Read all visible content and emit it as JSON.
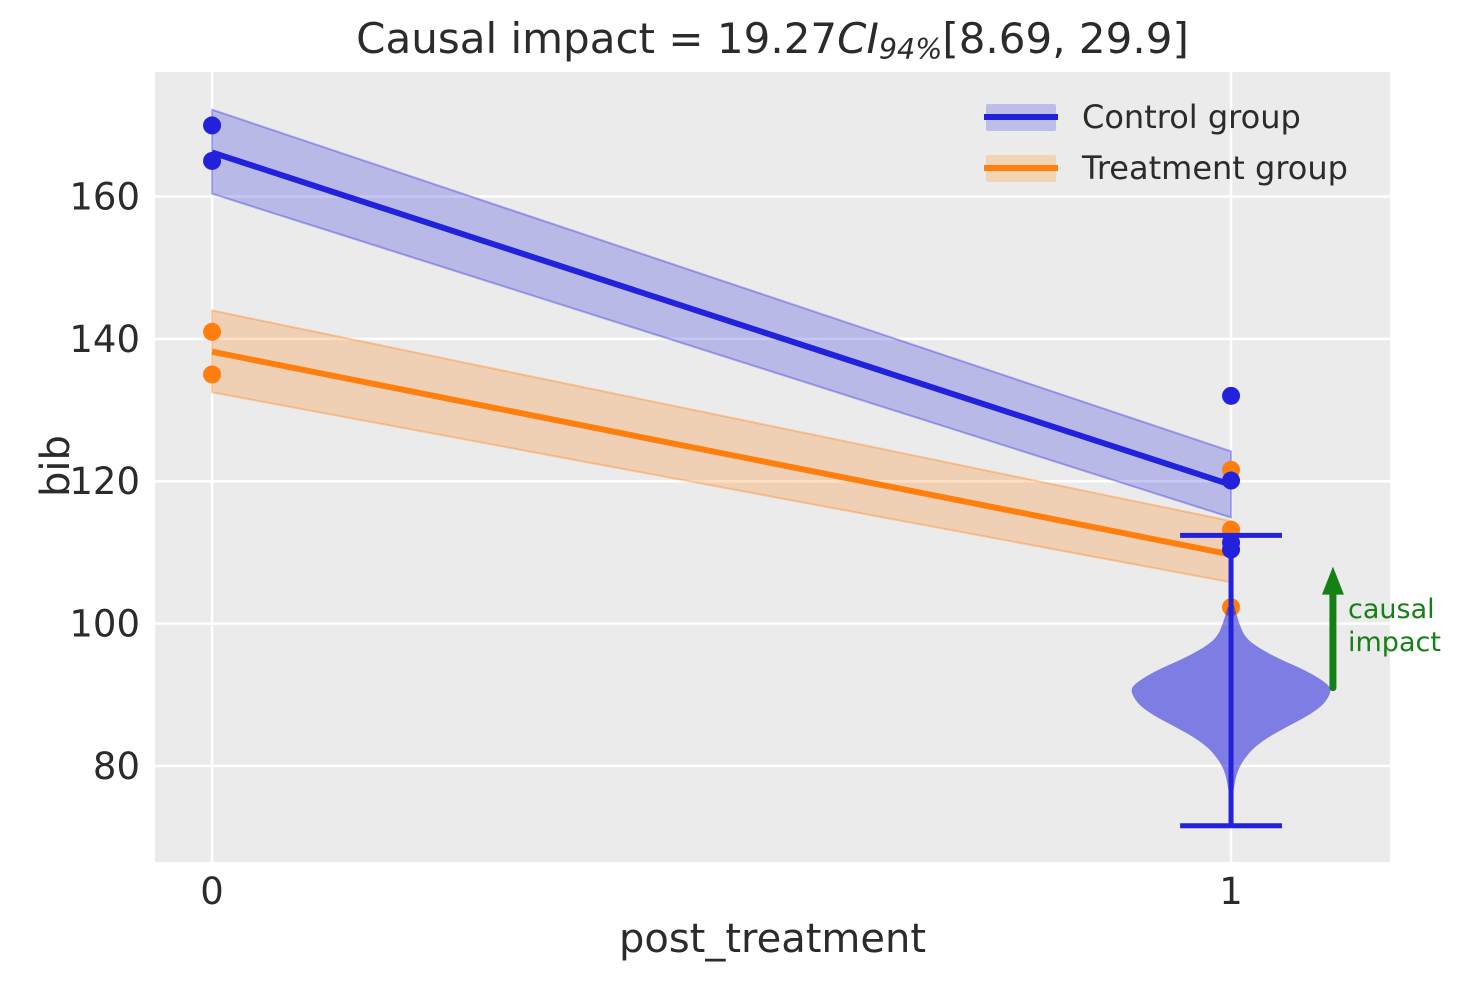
{
  "chart_data": {
    "type": "line",
    "title": {
      "prefix": "Causal impact = 19.27",
      "ci": "CI",
      "ci_sub": "94%",
      "interval": "[8.69, 29.9]",
      "plain_text": "Causal impact = 19.27 CI 94% [8.69, 29.9]"
    },
    "xlabel": "post_treatment",
    "ylabel": "bib",
    "xlim": [
      -0.056,
      1.156
    ],
    "ylim": [
      66.5,
      177.5
    ],
    "xticks": [
      0,
      1
    ],
    "yticks": [
      80,
      100,
      120,
      140,
      160
    ],
    "grid": true,
    "colors": {
      "figure_bg": "#ffffff",
      "plot_bg": "#ebebeb",
      "grid": "#ffffff",
      "text": "#2b2b2b",
      "control_blue": "#2222dd",
      "treatment_orange": "#ff7f0e",
      "green": "#158015"
    },
    "legend": {
      "position": "upper right",
      "entries": [
        {
          "id": "control",
          "label": "Control group",
          "line_color": "#2222dd",
          "band_color": "#bdbde9"
        },
        {
          "id": "treatment",
          "label": "Treatment group",
          "line_color": "#ff7f0e",
          "band_color": "#f2d4b4"
        }
      ]
    },
    "series": [
      {
        "id": "control",
        "name": "Control group",
        "color": "#2222dd",
        "band_alpha": 0.25,
        "line": {
          "x": [
            0,
            1
          ],
          "y": [
            166.2,
            119.5
          ]
        },
        "band": {
          "x": [
            0,
            1
          ],
          "upper": [
            172.2,
            124.2
          ],
          "lower": [
            160.4,
            114.9
          ]
        },
        "points": [
          [
            0,
            170
          ],
          [
            0,
            165
          ],
          [
            1,
            132
          ],
          [
            1,
            120.1
          ],
          [
            1,
            111.4
          ],
          [
            1,
            110.4
          ]
        ]
      },
      {
        "id": "treatment",
        "name": "Treatment group",
        "color": "#ff7f0e",
        "band_alpha": 0.25,
        "line": {
          "x": [
            0,
            1
          ],
          "y": [
            138.2,
            109.7
          ]
        },
        "band": {
          "x": [
            0,
            1
          ],
          "upper": [
            144.0,
            114.4
          ],
          "lower": [
            132.5,
            105.8
          ]
        },
        "points": [
          [
            0,
            141
          ],
          [
            0,
            135
          ],
          [
            1,
            121.6
          ],
          [
            1,
            113.2
          ],
          [
            1,
            102.3
          ]
        ]
      }
    ],
    "violin": {
      "x": 1,
      "fill": "#2222dd",
      "alpha": 0.55,
      "whisker_top": 112.4,
      "whisker_bottom": 71.6,
      "cap_halfwidth": 0.05,
      "profile": [
        [
          103,
          0.002
        ],
        [
          101.5,
          0.005
        ],
        [
          100,
          0.008
        ],
        [
          98,
          0.014
        ],
        [
          96.5,
          0.028
        ],
        [
          95,
          0.048
        ],
        [
          93.5,
          0.072
        ],
        [
          92,
          0.09
        ],
        [
          91,
          0.098
        ],
        [
          90,
          0.097
        ],
        [
          88.5,
          0.09
        ],
        [
          87,
          0.075
        ],
        [
          85.5,
          0.055
        ],
        [
          84,
          0.036
        ],
        [
          82.5,
          0.022
        ],
        [
          81,
          0.013
        ],
        [
          79.5,
          0.007
        ],
        [
          78,
          0.004
        ],
        [
          76,
          0.002
        ]
      ]
    },
    "annotation": {
      "line1": "causal",
      "line2": "impact",
      "color": "#158015",
      "arrow": {
        "x": 1.1,
        "y_from": 91.0,
        "y_to": 108.0
      }
    }
  }
}
